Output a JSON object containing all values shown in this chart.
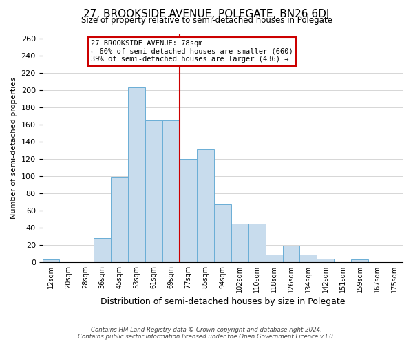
{
  "title": "27, BROOKSIDE AVENUE, POLEGATE, BN26 6DJ",
  "subtitle": "Size of property relative to semi-detached houses in Polegate",
  "xlabel": "Distribution of semi-detached houses by size in Polegate",
  "ylabel": "Number of semi-detached properties",
  "bar_labels": [
    "12sqm",
    "20sqm",
    "28sqm",
    "36sqm",
    "45sqm",
    "53sqm",
    "61sqm",
    "69sqm",
    "77sqm",
    "85sqm",
    "94sqm",
    "102sqm",
    "110sqm",
    "118sqm",
    "126sqm",
    "134sqm",
    "142sqm",
    "151sqm",
    "159sqm",
    "167sqm",
    "175sqm"
  ],
  "bar_values": [
    3,
    0,
    0,
    28,
    99,
    203,
    165,
    165,
    120,
    131,
    67,
    45,
    45,
    9,
    19,
    9,
    4,
    0,
    3,
    0,
    0
  ],
  "bar_color": "#c8dced",
  "bar_edge_color": "#6aaed6",
  "vline_color": "#cc0000",
  "annotation_title": "27 BROOKSIDE AVENUE: 78sqm",
  "annotation_line1": "← 60% of semi-detached houses are smaller (660)",
  "annotation_line2": "39% of semi-detached houses are larger (436) →",
  "annotation_box_color": "#ffffff",
  "annotation_box_edge": "#cc0000",
  "ylim": [
    0,
    265
  ],
  "yticks": [
    0,
    20,
    40,
    60,
    80,
    100,
    120,
    140,
    160,
    180,
    200,
    220,
    240,
    260
  ],
  "footer1": "Contains HM Land Registry data © Crown copyright and database right 2024.",
  "footer2": "Contains public sector information licensed under the Open Government Licence v3.0."
}
